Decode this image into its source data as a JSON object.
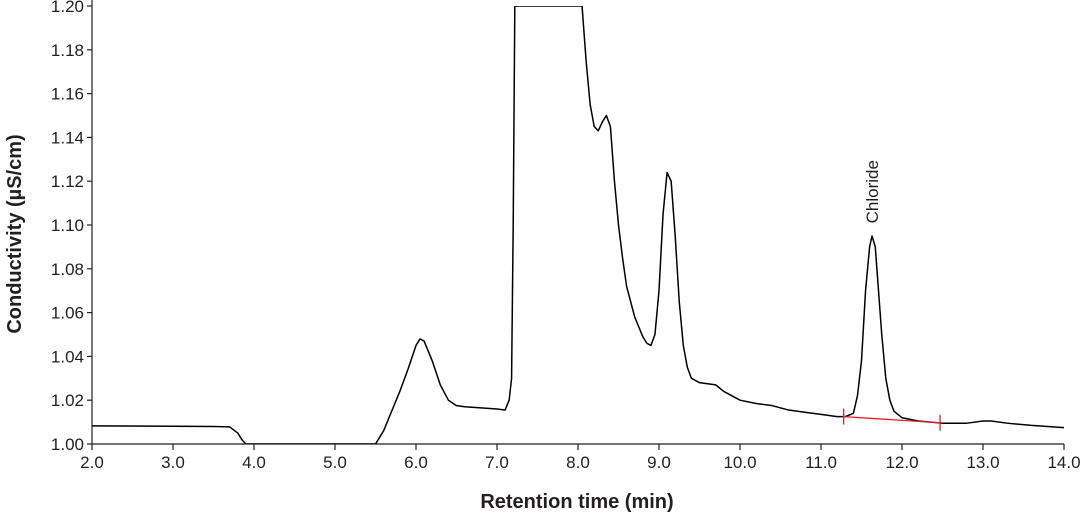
{
  "chart_data": {
    "type": "line",
    "title": "",
    "xlabel": "Retention time (min)",
    "ylabel": "Conductivity (µS/cm)",
    "xlim": [
      2.0,
      14.0
    ],
    "ylim": [
      1.0,
      1.2
    ],
    "x_ticks": [
      "2.0",
      "3.0",
      "4.0",
      "5.0",
      "6.0",
      "7.0",
      "8.0",
      "9.0",
      "10.0",
      "11.0",
      "12.0",
      "13.0",
      "14.0"
    ],
    "y_ticks": [
      "1.00",
      "1.02",
      "1.04",
      "1.06",
      "1.08",
      "1.10",
      "1.12",
      "1.14",
      "1.16",
      "1.18",
      "1.20"
    ],
    "grid": false,
    "colors": {
      "trace": "#000000",
      "baseline": "#e31e24",
      "axis": "#231f20"
    },
    "series": [
      {
        "points": [
          [
            2.0,
            1.0083
          ],
          [
            3.0,
            1.0081
          ],
          [
            3.5,
            1.008
          ],
          [
            3.7,
            1.0078
          ],
          [
            3.8,
            1.005
          ],
          [
            3.85,
            1.002
          ],
          [
            3.9,
            1.0
          ],
          [
            5.5,
            1.0
          ],
          [
            5.6,
            1.006
          ],
          [
            5.7,
            1.015
          ],
          [
            5.8,
            1.024
          ],
          [
            5.9,
            1.034
          ],
          [
            6.0,
            1.045
          ],
          [
            6.05,
            1.048
          ],
          [
            6.1,
            1.047
          ],
          [
            6.2,
            1.038
          ],
          [
            6.3,
            1.027
          ],
          [
            6.4,
            1.02
          ],
          [
            6.5,
            1.0175
          ],
          [
            6.6,
            1.017
          ],
          [
            7.0,
            1.016
          ],
          [
            7.1,
            1.0155
          ],
          [
            7.15,
            1.02
          ],
          [
            7.18,
            1.03
          ],
          [
            7.2,
            1.1
          ],
          [
            7.22,
            1.2
          ],
          [
            8.05,
            1.2
          ],
          [
            8.1,
            1.175
          ],
          [
            8.15,
            1.155
          ],
          [
            8.2,
            1.145
          ],
          [
            8.25,
            1.143
          ],
          [
            8.3,
            1.147
          ],
          [
            8.35,
            1.15
          ],
          [
            8.4,
            1.145
          ],
          [
            8.45,
            1.12
          ],
          [
            8.5,
            1.1
          ],
          [
            8.55,
            1.085
          ],
          [
            8.6,
            1.072
          ],
          [
            8.7,
            1.058
          ],
          [
            8.8,
            1.049
          ],
          [
            8.85,
            1.046
          ],
          [
            8.9,
            1.045
          ],
          [
            8.95,
            1.05
          ],
          [
            9.0,
            1.07
          ],
          [
            9.05,
            1.105
          ],
          [
            9.1,
            1.124
          ],
          [
            9.15,
            1.12
          ],
          [
            9.2,
            1.095
          ],
          [
            9.25,
            1.065
          ],
          [
            9.3,
            1.045
          ],
          [
            9.35,
            1.035
          ],
          [
            9.4,
            1.03
          ],
          [
            9.5,
            1.028
          ],
          [
            9.6,
            1.0275
          ],
          [
            9.7,
            1.027
          ],
          [
            9.8,
            1.024
          ],
          [
            10.0,
            1.02
          ],
          [
            10.2,
            1.0185
          ],
          [
            10.4,
            1.0175
          ],
          [
            10.6,
            1.0155
          ],
          [
            10.8,
            1.0145
          ],
          [
            11.0,
            1.0135
          ],
          [
            11.2,
            1.0125
          ],
          [
            11.3,
            1.0125
          ],
          [
            11.4,
            1.014
          ],
          [
            11.45,
            1.022
          ],
          [
            11.5,
            1.038
          ],
          [
            11.55,
            1.07
          ],
          [
            11.6,
            1.09
          ],
          [
            11.63,
            1.095
          ],
          [
            11.67,
            1.09
          ],
          [
            11.7,
            1.075
          ],
          [
            11.75,
            1.05
          ],
          [
            11.8,
            1.03
          ],
          [
            11.85,
            1.02
          ],
          [
            11.9,
            1.015
          ],
          [
            12.0,
            1.012
          ],
          [
            12.2,
            1.0105
          ],
          [
            12.5,
            1.0095
          ],
          [
            12.8,
            1.0095
          ],
          [
            13.0,
            1.0105
          ],
          [
            13.1,
            1.0105
          ],
          [
            13.3,
            1.0095
          ],
          [
            13.6,
            1.0085
          ],
          [
            14.0,
            1.0075
          ]
        ]
      }
    ],
    "baseline": {
      "start": [
        11.28,
        1.0125
      ],
      "end": [
        12.47,
        1.0097
      ]
    },
    "annotations": [
      {
        "text": "Chloride",
        "x": 11.63,
        "y": 1.098,
        "rotation": -90
      }
    ]
  }
}
